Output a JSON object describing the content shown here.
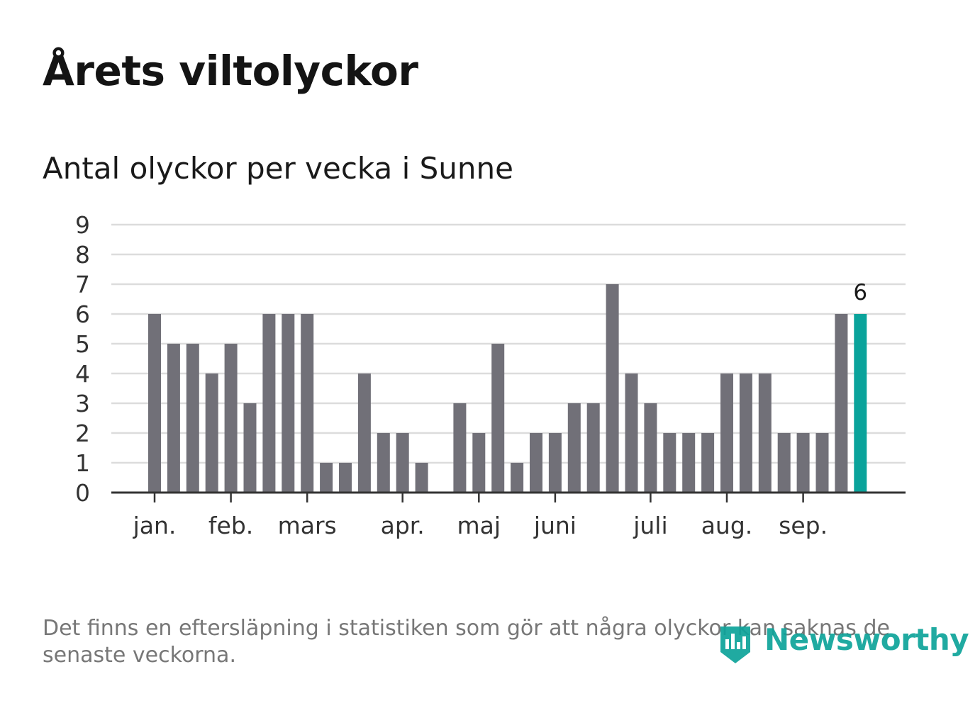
{
  "header": {
    "title": "Årets viltolyckor",
    "subtitle": "Antal olyckor per vecka i Sunne"
  },
  "footer": {
    "note": "Det finns en eftersläpning i statistiken som gör att några olyckor kan saknas de senaste veckorna.",
    "brand": "Newsworthy"
  },
  "colors": {
    "bar": "#717078",
    "highlight": "#0aa39b",
    "grid": "#dcdcdc",
    "axis": "#333333",
    "brand": "#0ea39a"
  },
  "chart_data": {
    "type": "bar",
    "title": "Antal olyckor per vecka i Sunne",
    "xlabel": "",
    "ylabel": "",
    "ylim": [
      0,
      9
    ],
    "yticks": [
      0,
      1,
      2,
      3,
      4,
      5,
      6,
      7,
      8,
      9
    ],
    "grid": true,
    "weeks": [
      1,
      2,
      3,
      4,
      5,
      6,
      7,
      8,
      9,
      10,
      11,
      12,
      13,
      14,
      15,
      16,
      17,
      18,
      19,
      20,
      21,
      22,
      23,
      24,
      25,
      26,
      27,
      28,
      29,
      30,
      31,
      32,
      33,
      34,
      35,
      36,
      37,
      38
    ],
    "values": [
      6,
      5,
      5,
      4,
      5,
      3,
      6,
      6,
      6,
      1,
      1,
      4,
      2,
      2,
      1,
      0,
      3,
      2,
      5,
      1,
      2,
      2,
      3,
      3,
      7,
      4,
      3,
      2,
      2,
      2,
      4,
      4,
      4,
      2,
      2,
      2,
      6,
      6
    ],
    "highlight_index": 37,
    "highlight_label": "6",
    "month_ticks": [
      {
        "label": "jan.",
        "week_index": 0
      },
      {
        "label": "feb.",
        "week_index": 4
      },
      {
        "label": "mars",
        "week_index": 8
      },
      {
        "label": "apr.",
        "week_index": 13
      },
      {
        "label": "maj",
        "week_index": 17
      },
      {
        "label": "juni",
        "week_index": 21
      },
      {
        "label": "juli",
        "week_index": 26
      },
      {
        "label": "aug.",
        "week_index": 30
      },
      {
        "label": "sep.",
        "week_index": 34
      }
    ]
  }
}
